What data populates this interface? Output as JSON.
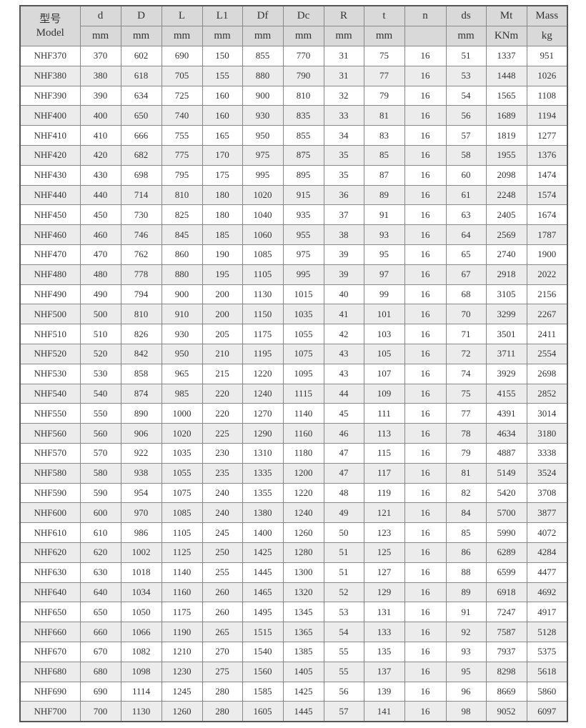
{
  "header": {
    "model_cn": "型号",
    "model_en": "Model",
    "columns": [
      {
        "name": "d",
        "unit": "mm"
      },
      {
        "name": "D",
        "unit": "mm"
      },
      {
        "name": "L",
        "unit": "mm"
      },
      {
        "name": "L1",
        "unit": "mm"
      },
      {
        "name": "Df",
        "unit": "mm"
      },
      {
        "name": "Dc",
        "unit": "mm"
      },
      {
        "name": "R",
        "unit": "mm"
      },
      {
        "name": "t",
        "unit": "mm"
      },
      {
        "name": "n",
        "unit": ""
      },
      {
        "name": "ds",
        "unit": "mm"
      },
      {
        "name": "Mt",
        "unit": "KNm"
      },
      {
        "name": "Mass",
        "unit": "kg"
      }
    ]
  },
  "rows": [
    [
      "NHF370",
      "370",
      "602",
      "690",
      "150",
      "855",
      "770",
      "31",
      "75",
      "16",
      "51",
      "1337",
      "951"
    ],
    [
      "NHF380",
      "380",
      "618",
      "705",
      "155",
      "880",
      "790",
      "31",
      "77",
      "16",
      "53",
      "1448",
      "1026"
    ],
    [
      "NHF390",
      "390",
      "634",
      "725",
      "160",
      "900",
      "810",
      "32",
      "79",
      "16",
      "54",
      "1565",
      "1108"
    ],
    [
      "NHF400",
      "400",
      "650",
      "740",
      "160",
      "930",
      "835",
      "33",
      "81",
      "16",
      "56",
      "1689",
      "1194"
    ],
    [
      "NHF410",
      "410",
      "666",
      "755",
      "165",
      "950",
      "855",
      "34",
      "83",
      "16",
      "57",
      "1819",
      "1277"
    ],
    [
      "NHF420",
      "420",
      "682",
      "775",
      "170",
      "975",
      "875",
      "35",
      "85",
      "16",
      "58",
      "1955",
      "1376"
    ],
    [
      "NHF430",
      "430",
      "698",
      "795",
      "175",
      "995",
      "895",
      "35",
      "87",
      "16",
      "60",
      "2098",
      "1474"
    ],
    [
      "NHF440",
      "440",
      "714",
      "810",
      "180",
      "1020",
      "915",
      "36",
      "89",
      "16",
      "61",
      "2248",
      "1574"
    ],
    [
      "NHF450",
      "450",
      "730",
      "825",
      "180",
      "1040",
      "935",
      "37",
      "91",
      "16",
      "63",
      "2405",
      "1674"
    ],
    [
      "NHF460",
      "460",
      "746",
      "845",
      "185",
      "1060",
      "955",
      "38",
      "93",
      "16",
      "64",
      "2569",
      "1787"
    ],
    [
      "NHF470",
      "470",
      "762",
      "860",
      "190",
      "1085",
      "975",
      "39",
      "95",
      "16",
      "65",
      "2740",
      "1900"
    ],
    [
      "NHF480",
      "480",
      "778",
      "880",
      "195",
      "1105",
      "995",
      "39",
      "97",
      "16",
      "67",
      "2918",
      "2022"
    ],
    [
      "NHF490",
      "490",
      "794",
      "900",
      "200",
      "1130",
      "1015",
      "40",
      "99",
      "16",
      "68",
      "3105",
      "2156"
    ],
    [
      "NHF500",
      "500",
      "810",
      "910",
      "200",
      "1150",
      "1035",
      "41",
      "101",
      "16",
      "70",
      "3299",
      "2267"
    ],
    [
      "NHF510",
      "510",
      "826",
      "930",
      "205",
      "1175",
      "1055",
      "42",
      "103",
      "16",
      "71",
      "3501",
      "2411"
    ],
    [
      "NHF520",
      "520",
      "842",
      "950",
      "210",
      "1195",
      "1075",
      "43",
      "105",
      "16",
      "72",
      "3711",
      "2554"
    ],
    [
      "NHF530",
      "530",
      "858",
      "965",
      "215",
      "1220",
      "1095",
      "43",
      "107",
      "16",
      "74",
      "3929",
      "2698"
    ],
    [
      "NHF540",
      "540",
      "874",
      "985",
      "220",
      "1240",
      "1115",
      "44",
      "109",
      "16",
      "75",
      "4155",
      "2852"
    ],
    [
      "NHF550",
      "550",
      "890",
      "1000",
      "220",
      "1270",
      "1140",
      "45",
      "111",
      "16",
      "77",
      "4391",
      "3014"
    ],
    [
      "NHF560",
      "560",
      "906",
      "1020",
      "225",
      "1290",
      "1160",
      "46",
      "113",
      "16",
      "78",
      "4634",
      "3180"
    ],
    [
      "NHF570",
      "570",
      "922",
      "1035",
      "230",
      "1310",
      "1180",
      "47",
      "115",
      "16",
      "79",
      "4887",
      "3338"
    ],
    [
      "NHF580",
      "580",
      "938",
      "1055",
      "235",
      "1335",
      "1200",
      "47",
      "117",
      "16",
      "81",
      "5149",
      "3524"
    ],
    [
      "NHF590",
      "590",
      "954",
      "1075",
      "240",
      "1355",
      "1220",
      "48",
      "119",
      "16",
      "82",
      "5420",
      "3708"
    ],
    [
      "NHF600",
      "600",
      "970",
      "1085",
      "240",
      "1380",
      "1240",
      "49",
      "121",
      "16",
      "84",
      "5700",
      "3877"
    ],
    [
      "NHF610",
      "610",
      "986",
      "1105",
      "245",
      "1400",
      "1260",
      "50",
      "123",
      "16",
      "85",
      "5990",
      "4072"
    ],
    [
      "NHF620",
      "620",
      "1002",
      "1125",
      "250",
      "1425",
      "1280",
      "51",
      "125",
      "16",
      "86",
      "6289",
      "4284"
    ],
    [
      "NHF630",
      "630",
      "1018",
      "1140",
      "255",
      "1445",
      "1300",
      "51",
      "127",
      "16",
      "88",
      "6599",
      "4477"
    ],
    [
      "NHF640",
      "640",
      "1034",
      "1160",
      "260",
      "1465",
      "1320",
      "52",
      "129",
      "16",
      "89",
      "6918",
      "4692"
    ],
    [
      "NHF650",
      "650",
      "1050",
      "1175",
      "260",
      "1495",
      "1345",
      "53",
      "131",
      "16",
      "91",
      "7247",
      "4917"
    ],
    [
      "NHF660",
      "660",
      "1066",
      "1190",
      "265",
      "1515",
      "1365",
      "54",
      "133",
      "16",
      "92",
      "7587",
      "5128"
    ],
    [
      "NHF670",
      "670",
      "1082",
      "1210",
      "270",
      "1540",
      "1385",
      "55",
      "135",
      "16",
      "93",
      "7937",
      "5375"
    ],
    [
      "NHF680",
      "680",
      "1098",
      "1230",
      "275",
      "1560",
      "1405",
      "55",
      "137",
      "16",
      "95",
      "8298",
      "5618"
    ],
    [
      "NHF690",
      "690",
      "1114",
      "1245",
      "280",
      "1585",
      "1425",
      "56",
      "139",
      "16",
      "96",
      "8669",
      "5860"
    ],
    [
      "NHF700",
      "700",
      "1130",
      "1260",
      "280",
      "1605",
      "1445",
      "57",
      "141",
      "16",
      "98",
      "9052",
      "6097"
    ]
  ]
}
